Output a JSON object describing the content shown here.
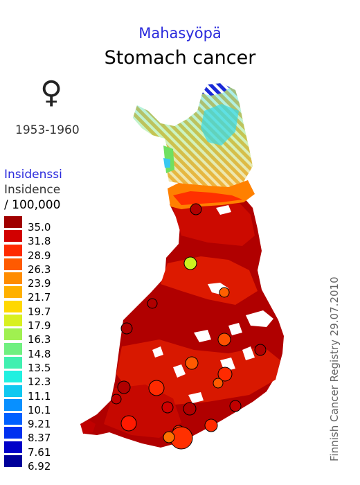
{
  "title_fi": "Mahasyöpä",
  "title_en": "Stomach cancer",
  "sex_symbol": "♀",
  "sex_icon": "female-symbol-icon",
  "period": "1953-1960",
  "legend": {
    "title_fi": "Insidenssi",
    "title_en": "Insidence",
    "unit": "/ 100,000",
    "items": [
      {
        "label": "35.0",
        "color": "#a00000"
      },
      {
        "label": "31.8",
        "color": "#d20000"
      },
      {
        "label": "28.9",
        "color": "#ff2a00"
      },
      {
        "label": "26.3",
        "color": "#ff5a00"
      },
      {
        "label": "23.9",
        "color": "#ff8c00"
      },
      {
        "label": "21.7",
        "color": "#ffb000"
      },
      {
        "label": "19.7",
        "color": "#ffd800"
      },
      {
        "label": "17.9",
        "color": "#d8f020"
      },
      {
        "label": "16.3",
        "color": "#a0f050"
      },
      {
        "label": "14.8",
        "color": "#70f080"
      },
      {
        "label": "13.5",
        "color": "#40f0b0"
      },
      {
        "label": "12.3",
        "color": "#20f0e0"
      },
      {
        "label": "11.1",
        "color": "#10c8f0"
      },
      {
        "label": "10.1",
        "color": "#0890ff"
      },
      {
        "label": "9.21",
        "color": "#0060ff"
      },
      {
        "label": "8.37",
        "color": "#0030f0"
      },
      {
        "label": "7.61",
        "color": "#0000c8"
      },
      {
        "label": "6.92",
        "color": "#00009a"
      }
    ]
  },
  "credit": "Finnish Cancer Registry 29.07.2010"
}
